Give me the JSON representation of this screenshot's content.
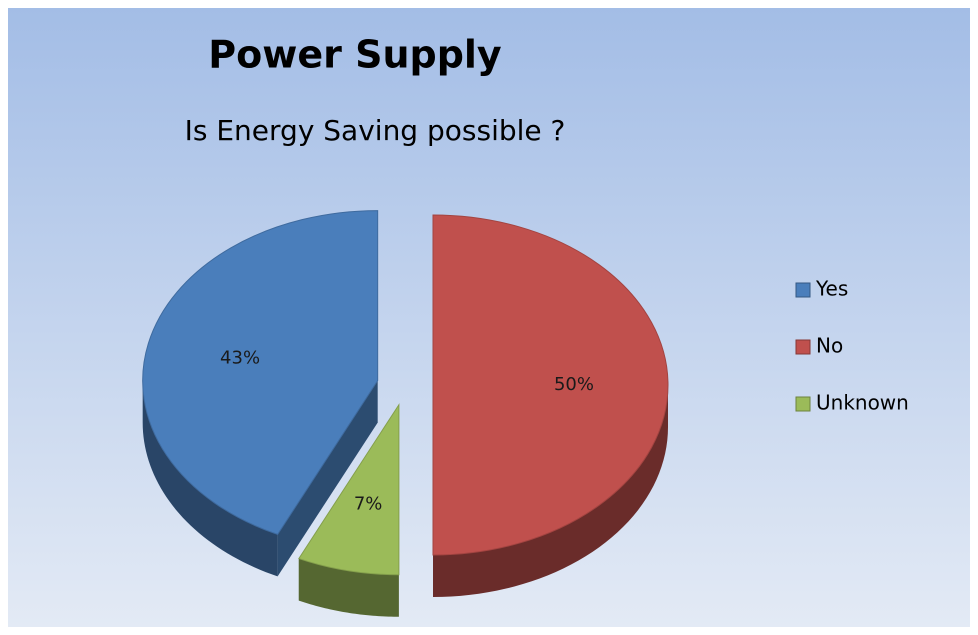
{
  "chart_data": {
    "type": "pie",
    "title": "Power Supply",
    "subtitle": "Is Energy Saving possible ?",
    "categories": [
      "Yes",
      "No",
      "Unknown"
    ],
    "values": [
      43,
      50,
      7
    ],
    "value_labels": [
      "43%",
      "50%",
      "7%"
    ],
    "colors": [
      "#4a7ebb",
      "#c0504d",
      "#9bbb59"
    ],
    "legend": "right"
  }
}
